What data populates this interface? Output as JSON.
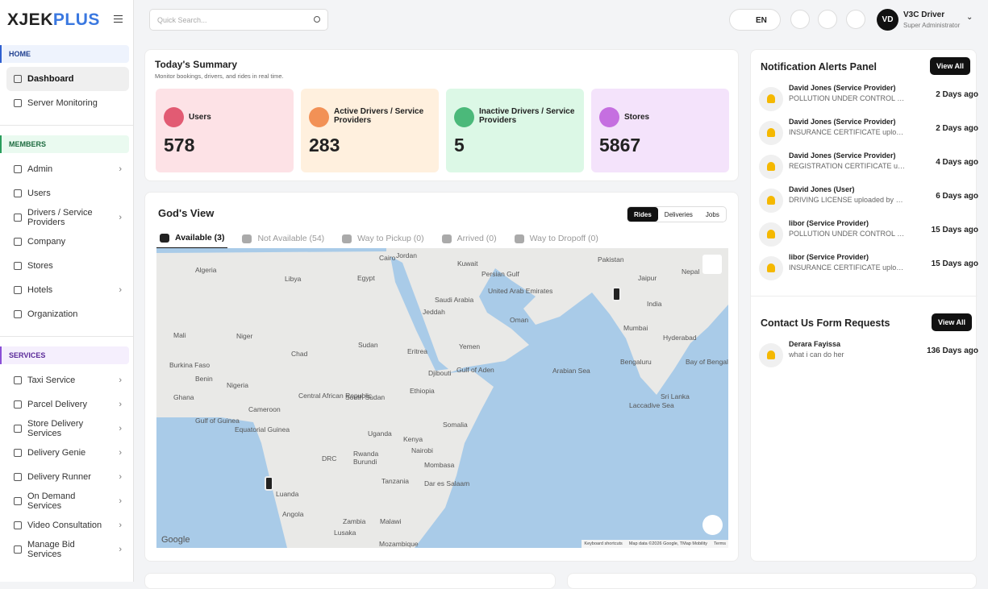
{
  "sidebar": {
    "logo_dark": "XJEK",
    "logo_accent": "PLUS",
    "sections": [
      {
        "title": "HOME",
        "items": [
          {
            "label": "Dashboard",
            "active": true
          },
          {
            "label": "Server Monitoring"
          }
        ]
      },
      {
        "title": "MEMBERS",
        "items": [
          {
            "label": "Admin",
            "submenu": true
          },
          {
            "label": "Users"
          },
          {
            "label": "Drivers / Service Providers",
            "submenu": true
          },
          {
            "label": "Company"
          },
          {
            "label": "Stores"
          },
          {
            "label": "Hotels",
            "submenu": true
          },
          {
            "label": "Organization"
          }
        ]
      },
      {
        "title": "SERVICES",
        "items": [
          {
            "label": "Taxi Service",
            "submenu": true
          },
          {
            "label": "Parcel Delivery",
            "submenu": true
          },
          {
            "label": "Store Delivery Services",
            "submenu": true
          },
          {
            "label": "Delivery Genie",
            "submenu": true
          },
          {
            "label": "Delivery Runner",
            "submenu": true
          },
          {
            "label": "On Demand Services",
            "submenu": true
          },
          {
            "label": "Video Consultation",
            "submenu": true
          },
          {
            "label": "Manage Bid Services",
            "submenu": true
          }
        ]
      }
    ]
  },
  "topbar": {
    "search_placeholder": "Quick Search...",
    "language": "EN",
    "avatar": "VD",
    "user_name": "V3C Driver",
    "user_role": "Super Administrator"
  },
  "summary": {
    "title": "Today's Summary",
    "subtitle": "Monitor bookings, drivers, and rides in real time.",
    "cards": [
      {
        "label": "Users",
        "value": "578"
      },
      {
        "label": "Active Drivers / Service Providers",
        "value": "283"
      },
      {
        "label": "Inactive Drivers / Service Providers",
        "value": "5"
      },
      {
        "label": "Stores",
        "value": "5867"
      }
    ]
  },
  "gods_view": {
    "title": "God's View",
    "modes": [
      "Rides",
      "Deliveries",
      "Jobs"
    ],
    "active_mode": 0,
    "tabs": [
      "Available (3)",
      "Not Available (54)",
      "Way to Pickup (0)",
      "Arrived (0)",
      "Way to Dropoff (0)"
    ],
    "active_tab": 0,
    "map": {
      "logo": "Google",
      "attribution": [
        "Keyboard shortcuts",
        "Map data ©2026 Google, TMap Mobility",
        "Terms"
      ],
      "labels": [
        "Cairo",
        "Jordan",
        "Kuwait",
        "Pakistan",
        "Algeria",
        "Libya",
        "Egypt",
        "Persian Gulf",
        "Saudi Arabia",
        "United Arab Emirates",
        "Jeddah",
        "Oman",
        "India",
        "Jaipur",
        "Nepal",
        "Mali",
        "Niger",
        "Chad",
        "Sudan",
        "Eritrea",
        "Yemen",
        "Mumbai",
        "Hyderabad",
        "Bengaluru",
        "Sri Lanka",
        "Arabian Sea",
        "Bay of Bengal",
        "Gulf of Aden",
        "Djibouti",
        "Burkina Faso",
        "Benin",
        "Nigeria",
        "Ethiopia",
        "Ghana",
        "Cameroon",
        "Central African Republic",
        "South Sudan",
        "Somalia",
        "Gulf of Guinea",
        "Equatorial Guinea",
        "Uganda",
        "Kenya",
        "Nairobi",
        "DRC",
        "Rwanda",
        "Burundi",
        "Mombasa",
        "Tanzania",
        "Dar es Salaam",
        "Luanda",
        "Angola",
        "Zambia",
        "Malawi",
        "Lusaka",
        "Mozambique",
        "Laccadive Sea"
      ]
    }
  },
  "notifications": {
    "title": "Notification Alerts Panel",
    "action": "View All",
    "items": [
      {
        "title": "David Jones (Service Provider)",
        "description": "POLLUTION UNDER CONTROL (PUC) upl...",
        "time": "2 Days ago"
      },
      {
        "title": "David Jones (Service Provider)",
        "description": "INSURANCE CERTIFICATE uploaded by S...",
        "time": "2 Days ago"
      },
      {
        "title": "David Jones (Service Provider)",
        "description": "REGISTRATION CERTIFICATE uploaded b...",
        "time": "4 Days ago"
      },
      {
        "title": "David Jones (User)",
        "description": "DRIVING LICENSE uploaded by user",
        "time": "6 Days ago"
      },
      {
        "title": "libor (Service Provider)",
        "description": "POLLUTION UNDER CONTROL (PUC) up...",
        "time": "15 Days ago"
      },
      {
        "title": "libor (Service Provider)",
        "description": "INSURANCE CERTIFICATE uploaded by ...",
        "time": "15 Days ago"
      }
    ]
  },
  "contact": {
    "title": "Contact Us Form Requests",
    "action": "View All",
    "items": [
      {
        "title": "Derara Fayissa",
        "description": "what i can do her",
        "time": "136 Days ago"
      }
    ]
  }
}
